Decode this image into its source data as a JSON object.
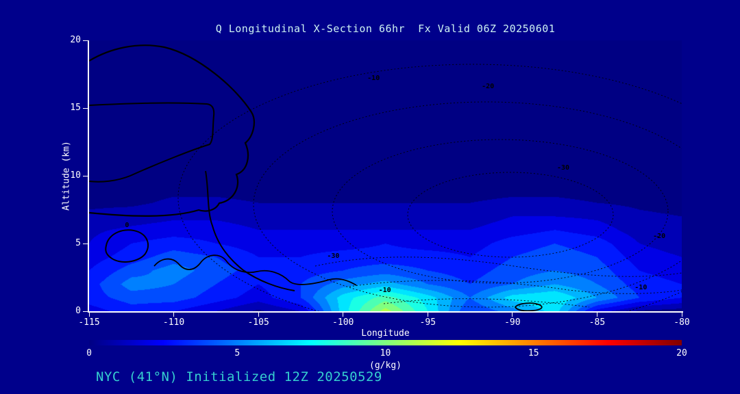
{
  "title": "Q Longitudinal X-Section 66hr  Fx Valid 06Z 20250601",
  "footer": "NYC (41°N) Initialized 12Z 20250529",
  "axes": {
    "x_label": "Longitude",
    "y_label": "Altitude (km)",
    "x_ticks": [
      "-115",
      "-110",
      "-105",
      "-100",
      "-95",
      "-90",
      "-85",
      "-80"
    ],
    "y_ticks": [
      "0",
      "5",
      "10",
      "15",
      "20"
    ]
  },
  "colorbar": {
    "label": "(g/kg)",
    "ticks": [
      "0",
      "5",
      "10",
      "15",
      "20"
    ],
    "min": 0,
    "max": 20,
    "stops": [
      [
        0,
        "#000083"
      ],
      [
        0.125,
        "#0000ff"
      ],
      [
        0.375,
        "#00ffff"
      ],
      [
        0.625,
        "#ffff00"
      ],
      [
        0.875,
        "#ff0000"
      ],
      [
        1,
        "#800000"
      ]
    ]
  },
  "colors": {
    "background": "#00008b",
    "axis": "#ffffff",
    "title_text": "#cdf2f2",
    "footer_text": "#36cfcf",
    "contour_line": "#000000"
  },
  "chart_data": {
    "type": "heatmap",
    "subtype": "filled-contour-cross-section",
    "title": "Q Longitudinal X-Section 66hr  Fx Valid 06Z 20250601",
    "xlabel": "Longitude",
    "ylabel": "Altitude (km)",
    "units": "g/kg",
    "x_range": [
      -115,
      -80
    ],
    "y_range": [
      0,
      20
    ],
    "colormap": "jet",
    "value_range": [
      0,
      20
    ],
    "band_step_gkg": 1,
    "grid": {
      "longitudes": [
        -115,
        -112.5,
        -110,
        -107.5,
        -105,
        -102.5,
        -100,
        -97.5,
        -95,
        -92.5,
        -90,
        -87.5,
        -85,
        -82.5,
        -80
      ],
      "altitudes_km": [
        0,
        1,
        2,
        3,
        4,
        5,
        6,
        7,
        8,
        10,
        12,
        16,
        20
      ],
      "q_gkg": [
        [
          2.5,
          3.5,
          3.0,
          2.0,
          0.8,
          2.0,
          7.5,
          11.5,
          8.0,
          4.0,
          5.5,
          7.5,
          2.5,
          0.8,
          0.5
        ],
        [
          3.5,
          4.5,
          4.5,
          3.5,
          2.5,
          4.0,
          7.5,
          9.5,
          7.5,
          5.0,
          7.5,
          8.0,
          6.0,
          4.0,
          3.0
        ],
        [
          3.5,
          5.5,
          5.0,
          4.0,
          3.0,
          4.0,
          5.5,
          6.5,
          5.0,
          4.0,
          5.0,
          6.0,
          5.0,
          3.5,
          3.0
        ],
        [
          3.0,
          4.5,
          5.5,
          4.5,
          3.5,
          3.5,
          4.0,
          4.5,
          4.0,
          3.5,
          4.5,
          5.0,
          4.5,
          3.0,
          2.5
        ],
        [
          2.5,
          3.5,
          4.5,
          4.0,
          3.0,
          3.0,
          3.5,
          3.5,
          3.5,
          3.0,
          4.0,
          4.5,
          4.0,
          2.5,
          2.0
        ],
        [
          2.0,
          3.0,
          3.5,
          3.0,
          2.5,
          2.5,
          2.5,
          3.0,
          2.5,
          2.5,
          3.5,
          4.0,
          3.5,
          2.0,
          1.5
        ],
        [
          1.8,
          2.2,
          2.5,
          2.5,
          2.0,
          2.0,
          2.0,
          2.0,
          2.0,
          2.0,
          2.5,
          3.0,
          2.5,
          1.5,
          1.2
        ],
        [
          1.2,
          1.5,
          1.8,
          1.8,
          1.5,
          1.5,
          1.5,
          1.5,
          1.5,
          1.5,
          2.0,
          2.0,
          1.8,
          1.2,
          1.0
        ],
        [
          0.8,
          0.8,
          1.2,
          1.2,
          1.0,
          1.0,
          1.0,
          1.0,
          1.0,
          1.0,
          1.2,
          1.2,
          1.0,
          0.8,
          0.6
        ],
        [
          0.3,
          0.3,
          0.3,
          0.3,
          0.3,
          0.3,
          0.3,
          0.3,
          0.3,
          0.3,
          0.3,
          0.3,
          0.3,
          0.3,
          0.3
        ],
        [
          0.2,
          0.2,
          0.2,
          0.2,
          0.2,
          0.2,
          0.2,
          0.2,
          0.2,
          0.2,
          0.2,
          0.2,
          0.2,
          0.2,
          0.2
        ],
        [
          0.1,
          0.1,
          0.1,
          0.1,
          0.1,
          0.1,
          0.1,
          0.1,
          0.1,
          0.1,
          0.1,
          0.1,
          0.1,
          0.1,
          0.1
        ],
        [
          0.1,
          0.1,
          0.1,
          0.1,
          0.1,
          0.1,
          0.1,
          0.1,
          0.1,
          0.1,
          0.1,
          0.1,
          0.1,
          0.1,
          0.1
        ]
      ]
    },
    "overlay_contour_labels": [
      {
        "text": "-10",
        "fx": 0.48,
        "fy": 0.141
      },
      {
        "text": "-20",
        "fx": 0.673,
        "fy": 0.172
      },
      {
        "text": "-30",
        "fx": 0.8,
        "fy": 0.472
      },
      {
        "text": "-20",
        "fx": 0.962,
        "fy": 0.725
      },
      {
        "text": "-30",
        "fx": 0.412,
        "fy": 0.798
      },
      {
        "text": "-10",
        "fx": 0.499,
        "fy": 0.924
      },
      {
        "text": "-10",
        "fx": 0.931,
        "fy": 0.914
      },
      {
        "text": "0",
        "fx": 0.064,
        "fy": 0.684
      }
    ],
    "legend_position": "bottom",
    "grid_lines": "off"
  }
}
